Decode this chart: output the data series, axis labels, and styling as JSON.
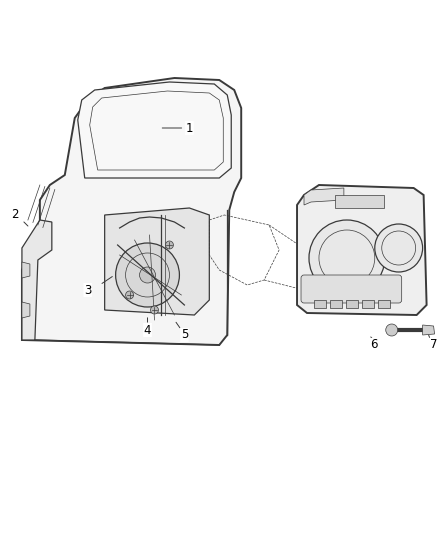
{
  "background_color": "#ffffff",
  "line_color": "#3a3a3a",
  "line_color_light": "#666666",
  "fill_door": "#f5f5f5",
  "fill_window": "#f0f0f0",
  "fill_panel": "#efefef",
  "label_color": "#000000",
  "figsize": [
    4.38,
    5.33
  ],
  "dpi": 100,
  "lw_main": 0.9,
  "lw_thin": 0.5,
  "lw_thick": 1.4,
  "label_fontsize": 8.5
}
